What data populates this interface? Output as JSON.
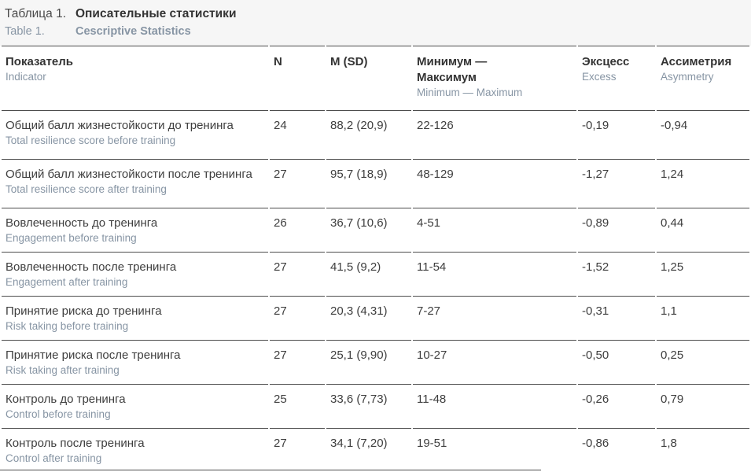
{
  "caption": {
    "ru_label": "Таблица 1.",
    "ru_title": "Описательные статистики",
    "en_label": "Table 1.",
    "en_title": "Cescriptive Statistics"
  },
  "columns": [
    {
      "ru": "Показатель",
      "en": "Indicator"
    },
    {
      "ru": "N",
      "en": ""
    },
    {
      "ru": "M (SD)",
      "en": ""
    },
    {
      "ru": "Минимум — Максимум",
      "en": "Minimum — Maximum"
    },
    {
      "ru": "Эксцесс",
      "en": "Excess"
    },
    {
      "ru": "Ассиметрия",
      "en": "Asymmetry"
    }
  ],
  "rows": [
    {
      "ru": "Общий балл жизнестойкости до тренинга",
      "en": "Total resilience score before training",
      "n": "24",
      "m_sd": "88,2 (20,9)",
      "min_max": "22-126",
      "excess": "-0,19",
      "asymmetry": "-0,94"
    },
    {
      "ru": "Общий балл жизнестойкости после тренинга",
      "en": "Total resilience score after training",
      "n": "27",
      "m_sd": "95,7 (18,9)",
      "min_max": "48-129",
      "excess": "-1,27",
      "asymmetry": "1,24"
    },
    {
      "ru": "Вовлеченность до тренинга",
      "en": "Engagement before training",
      "n": "26",
      "m_sd": "36,7 (10,6)",
      "min_max": "4-51",
      "excess": "-0,89",
      "asymmetry": "0,44"
    },
    {
      "ru": "Вовлеченность после тренинга",
      "en": "Engagement after training",
      "n": "27",
      "m_sd": "41,5 (9,2)",
      "min_max": "11-54",
      "excess": "-1,52",
      "asymmetry": "1,25"
    },
    {
      "ru": "Принятие риска до тренинга",
      "en": "Risk taking before training",
      "n": "27",
      "m_sd": "20,3 (4,31)",
      "min_max": "7-27",
      "excess": "-0,31",
      "asymmetry": "1,1"
    },
    {
      "ru": "Принятие риска после тренинга",
      "en": "Risk taking after training",
      "n": "27",
      "m_sd": "25,1 (9,90)",
      "min_max": "10-27",
      "excess": "-0,50",
      "asymmetry": "0,25"
    },
    {
      "ru": "Контроль до тренинга",
      "en": "Control before training",
      "n": "25",
      "m_sd": "33,6 (7,73)",
      "min_max": "11-48",
      "excess": "-0,26",
      "asymmetry": "0,79"
    },
    {
      "ru": "Контроль после тренинга",
      "en": "Control after training",
      "n": "27",
      "m_sd": "34,1 (7,20)",
      "min_max": "19-51",
      "excess": "-0,86",
      "asymmetry": "1,8"
    }
  ],
  "colors": {
    "text_primary": "#3e3e3e",
    "text_secondary": "#8795a4",
    "border": "#4d4d4d",
    "caption_background": "#f6f6f6"
  },
  "chart_data": {
    "type": "table",
    "title": "Таблица 1. Описательные статистики / Table 1. Cescriptive Statistics",
    "columns": [
      "Показатель / Indicator",
      "N",
      "M (SD)",
      "Минимум — Максимум / Minimum — Maximum",
      "Эксцесс / Excess",
      "Ассиметрия / Asymmetry"
    ],
    "rows": [
      [
        "Общий балл жизнестойкости до тренинга / Total resilience score before training",
        24,
        "88,2 (20,9)",
        "22-126",
        -0.19,
        -0.94
      ],
      [
        "Общий балл жизнестойкости после тренинга / Total resilience score after training",
        27,
        "95,7 (18,9)",
        "48-129",
        -1.27,
        1.24
      ],
      [
        "Вовлеченность до тренинга / Engagement before training",
        26,
        "36,7 (10,6)",
        "4-51",
        -0.89,
        0.44
      ],
      [
        "Вовлеченность после тренинга / Engagement after training",
        27,
        "41,5 (9,2)",
        "11-54",
        -1.52,
        1.25
      ],
      [
        "Принятие риска до тренинга / Risk taking before training",
        27,
        "20,3 (4,31)",
        "7-27",
        -0.31,
        1.1
      ],
      [
        "Принятие риска после тренинга / Risk taking after training",
        27,
        "25,1 (9,90)",
        "10-27",
        -0.5,
        0.25
      ],
      [
        "Контроль до тренинга / Control before training",
        25,
        "33,6 (7,73)",
        "11-48",
        -0.26,
        0.79
      ],
      [
        "Контроль после тренинга / Control after training",
        27,
        "34,1 (7,20)",
        "19-51",
        -0.86,
        1.8
      ]
    ]
  }
}
